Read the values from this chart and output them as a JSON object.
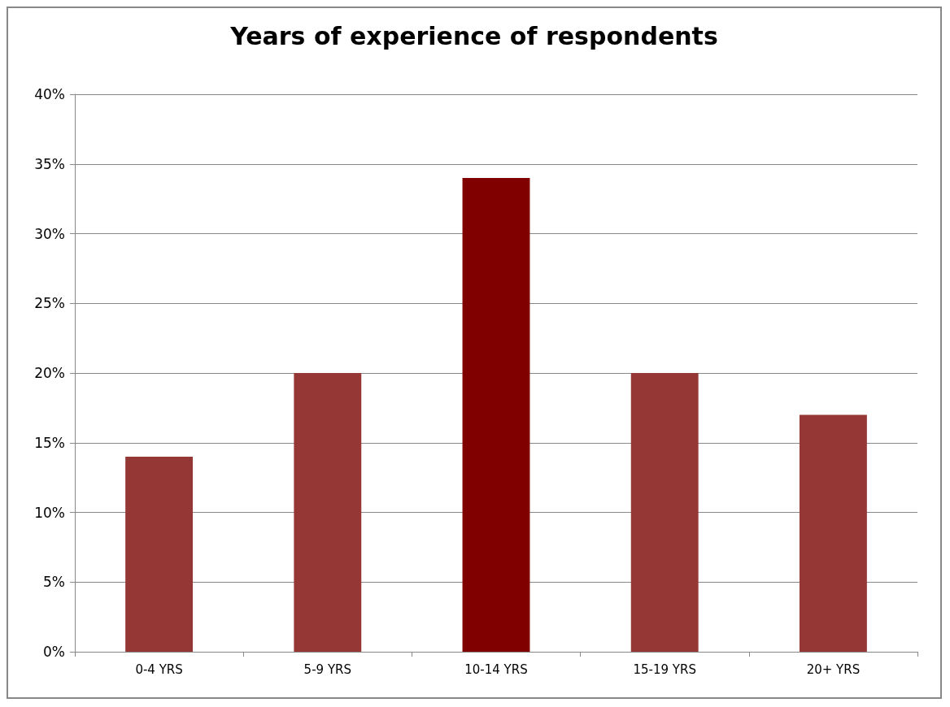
{
  "chart_data": {
    "type": "bar",
    "title": "Years of experience of respondents",
    "categories": [
      "0-4 YRS",
      "5-9 YRS",
      "10-14 YRS",
      "15-19 YRS",
      "20+ YRS"
    ],
    "values": [
      14,
      20,
      34,
      20,
      17
    ],
    "colors": [
      "#953735",
      "#953735",
      "#800000",
      "#953735",
      "#953735"
    ],
    "ylim": [
      0,
      40
    ],
    "yticks": [
      {
        "value": 0,
        "label": "0%"
      },
      {
        "value": 5,
        "label": "5%"
      },
      {
        "value": 10,
        "label": "10%"
      },
      {
        "value": 15,
        "label": "15%"
      },
      {
        "value": 20,
        "label": "20%"
      },
      {
        "value": 25,
        "label": "25%"
      },
      {
        "value": 30,
        "label": "30%"
      },
      {
        "value": 35,
        "label": "35%"
      },
      {
        "value": 40,
        "label": "40%"
      }
    ],
    "grid": "y"
  }
}
